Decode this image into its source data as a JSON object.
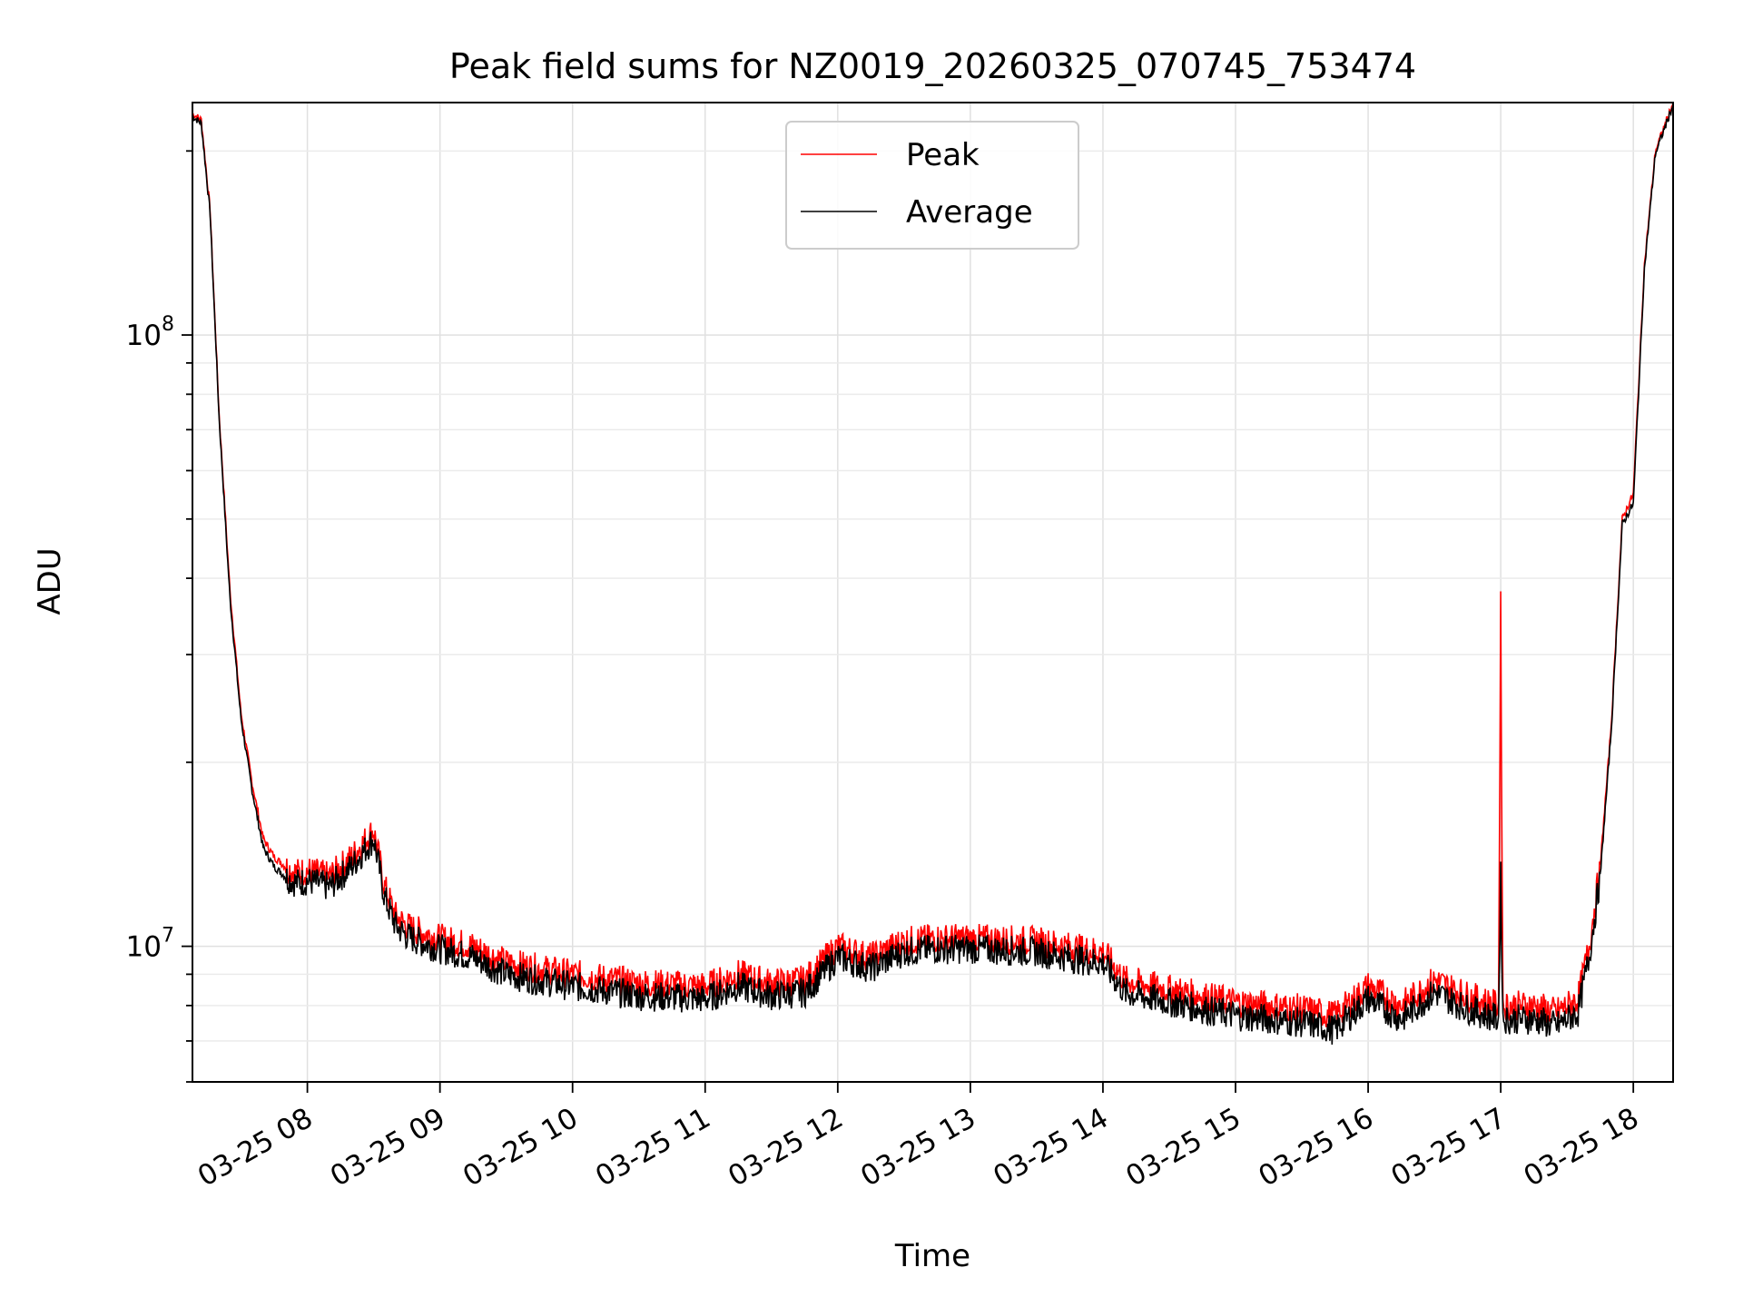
{
  "chart_data": {
    "type": "line",
    "title": "Peak field sums for NZ0019_20260325_070745_753474",
    "xlabel": "Time",
    "ylabel": "ADU",
    "yscale": "log",
    "ylim": [
      6000000,
      240000000
    ],
    "xlim": [
      "03-25 07:08",
      "03-25 18:18"
    ],
    "x_tick_labels": [
      "03-25 08",
      "03-25 09",
      "03-25 10",
      "03-25 11",
      "03-25 12",
      "03-25 13",
      "03-25 14",
      "03-25 15",
      "03-25 16",
      "03-25 17",
      "03-25 18"
    ],
    "x_ticks": [
      "03-25 08:00",
      "03-25 09:00",
      "03-25 10:00",
      "03-25 11:00",
      "03-25 12:00",
      "03-25 13:00",
      "03-25 14:00",
      "03-25 15:00",
      "03-25 16:00",
      "03-25 17:00",
      "03-25 18:00"
    ],
    "y_tick_labels": [
      {
        "value": 10000000,
        "base": "10",
        "exp": "7"
      },
      {
        "value": 100000000,
        "base": "10",
        "exp": "8"
      }
    ],
    "grid": true,
    "legend_position": "upper center",
    "series": [
      {
        "name": "Peak",
        "color": "#ff0000",
        "x": [
          "03-25 07:08",
          "03-25 07:12",
          "03-25 07:16",
          "03-25 07:20",
          "03-25 07:25",
          "03-25 07:30",
          "03-25 07:35",
          "03-25 07:40",
          "03-25 07:45",
          "03-25 07:50",
          "03-25 07:55",
          "03-25 08:00",
          "03-25 08:10",
          "03-25 08:20",
          "03-25 08:30",
          "03-25 08:35",
          "03-25 08:40",
          "03-25 08:45",
          "03-25 08:50",
          "03-25 09:00",
          "03-25 09:15",
          "03-25 09:30",
          "03-25 10:00",
          "03-25 10:30",
          "03-25 11:00",
          "03-25 11:15",
          "03-25 11:30",
          "03-25 11:45",
          "03-25 12:00",
          "03-25 12:15",
          "03-25 12:30",
          "03-25 12:45",
          "03-25 13:00",
          "03-25 13:30",
          "03-25 13:50",
          "03-25 14:00",
          "03-25 14:10",
          "03-25 14:30",
          "03-25 15:00",
          "03-25 15:30",
          "03-25 15:45",
          "03-25 16:00",
          "03-25 16:15",
          "03-25 16:30",
          "03-25 16:45",
          "03-25 16:59",
          "03-25 17:00",
          "03-25 17:01",
          "03-25 17:15",
          "03-25 17:25",
          "03-25 17:35",
          "03-25 17:40",
          "03-25 17:45",
          "03-25 17:50",
          "03-25 17:55",
          "03-25 18:00",
          "03-25 18:05",
          "03-25 18:10",
          "03-25 18:18"
        ],
        "values": [
          230000000,
          225000000,
          160000000,
          75000000,
          38000000,
          24000000,
          18500000,
          15000000,
          14000000,
          13500000,
          13200000,
          13300000,
          13000000,
          14000000,
          15500000,
          12500000,
          11200000,
          10800000,
          10600000,
          10300000,
          10000000,
          9400000,
          9000000,
          8700000,
          8600000,
          9000000,
          8700000,
          8800000,
          10000000,
          9600000,
          10200000,
          10300000,
          10300000,
          10200000,
          9900000,
          9800000,
          8800000,
          8500000,
          8100000,
          7900000,
          7700000,
          8600000,
          8000000,
          8800000,
          8300000,
          8000000,
          36000000,
          8000000,
          8000000,
          7800000,
          8200000,
          10000000,
          13500000,
          23000000,
          50000000,
          55000000,
          130000000,
          200000000,
          240000000
        ]
      },
      {
        "name": "Average",
        "color": "#000000",
        "x": [
          "03-25 07:08",
          "03-25 07:12",
          "03-25 07:16",
          "03-25 07:20",
          "03-25 07:25",
          "03-25 07:30",
          "03-25 07:35",
          "03-25 07:40",
          "03-25 07:45",
          "03-25 07:50",
          "03-25 07:55",
          "03-25 08:00",
          "03-25 08:10",
          "03-25 08:20",
          "03-25 08:30",
          "03-25 08:35",
          "03-25 08:40",
          "03-25 08:45",
          "03-25 08:50",
          "03-25 09:00",
          "03-25 09:15",
          "03-25 09:30",
          "03-25 10:00",
          "03-25 10:30",
          "03-25 11:00",
          "03-25 11:15",
          "03-25 11:30",
          "03-25 11:45",
          "03-25 12:00",
          "03-25 12:15",
          "03-25 12:30",
          "03-25 12:45",
          "03-25 13:00",
          "03-25 13:30",
          "03-25 13:50",
          "03-25 14:00",
          "03-25 14:10",
          "03-25 14:30",
          "03-25 15:00",
          "03-25 15:30",
          "03-25 15:45",
          "03-25 16:00",
          "03-25 16:15",
          "03-25 16:30",
          "03-25 16:45",
          "03-25 16:59",
          "03-25 17:00",
          "03-25 17:01",
          "03-25 17:15",
          "03-25 17:25",
          "03-25 17:35",
          "03-25 17:40",
          "03-25 17:45",
          "03-25 17:50",
          "03-25 17:55",
          "03-25 18:00",
          "03-25 18:05",
          "03-25 18:10",
          "03-25 18:18"
        ],
        "values": [
          228000000,
          222000000,
          158000000,
          74000000,
          37000000,
          23500000,
          18000000,
          14500000,
          13500000,
          13000000,
          12700000,
          12800000,
          12500000,
          13500000,
          15000000,
          12000000,
          10800000,
          10400000,
          10200000,
          9900000,
          9600000,
          9000000,
          8600000,
          8300000,
          8200000,
          8600000,
          8300000,
          8400000,
          9600000,
          9200000,
          9800000,
          9900000,
          9900000,
          9800000,
          9500000,
          9400000,
          8400000,
          8100000,
          7700000,
          7500000,
          7300000,
          8200000,
          7600000,
          8400000,
          7900000,
          7600000,
          13000000,
          7600000,
          7600000,
          7400000,
          7800000,
          9600000,
          13000000,
          22500000,
          49000000,
          53000000,
          128000000,
          198000000,
          238000000
        ]
      }
    ],
    "noise_amplitude": 0.05
  }
}
